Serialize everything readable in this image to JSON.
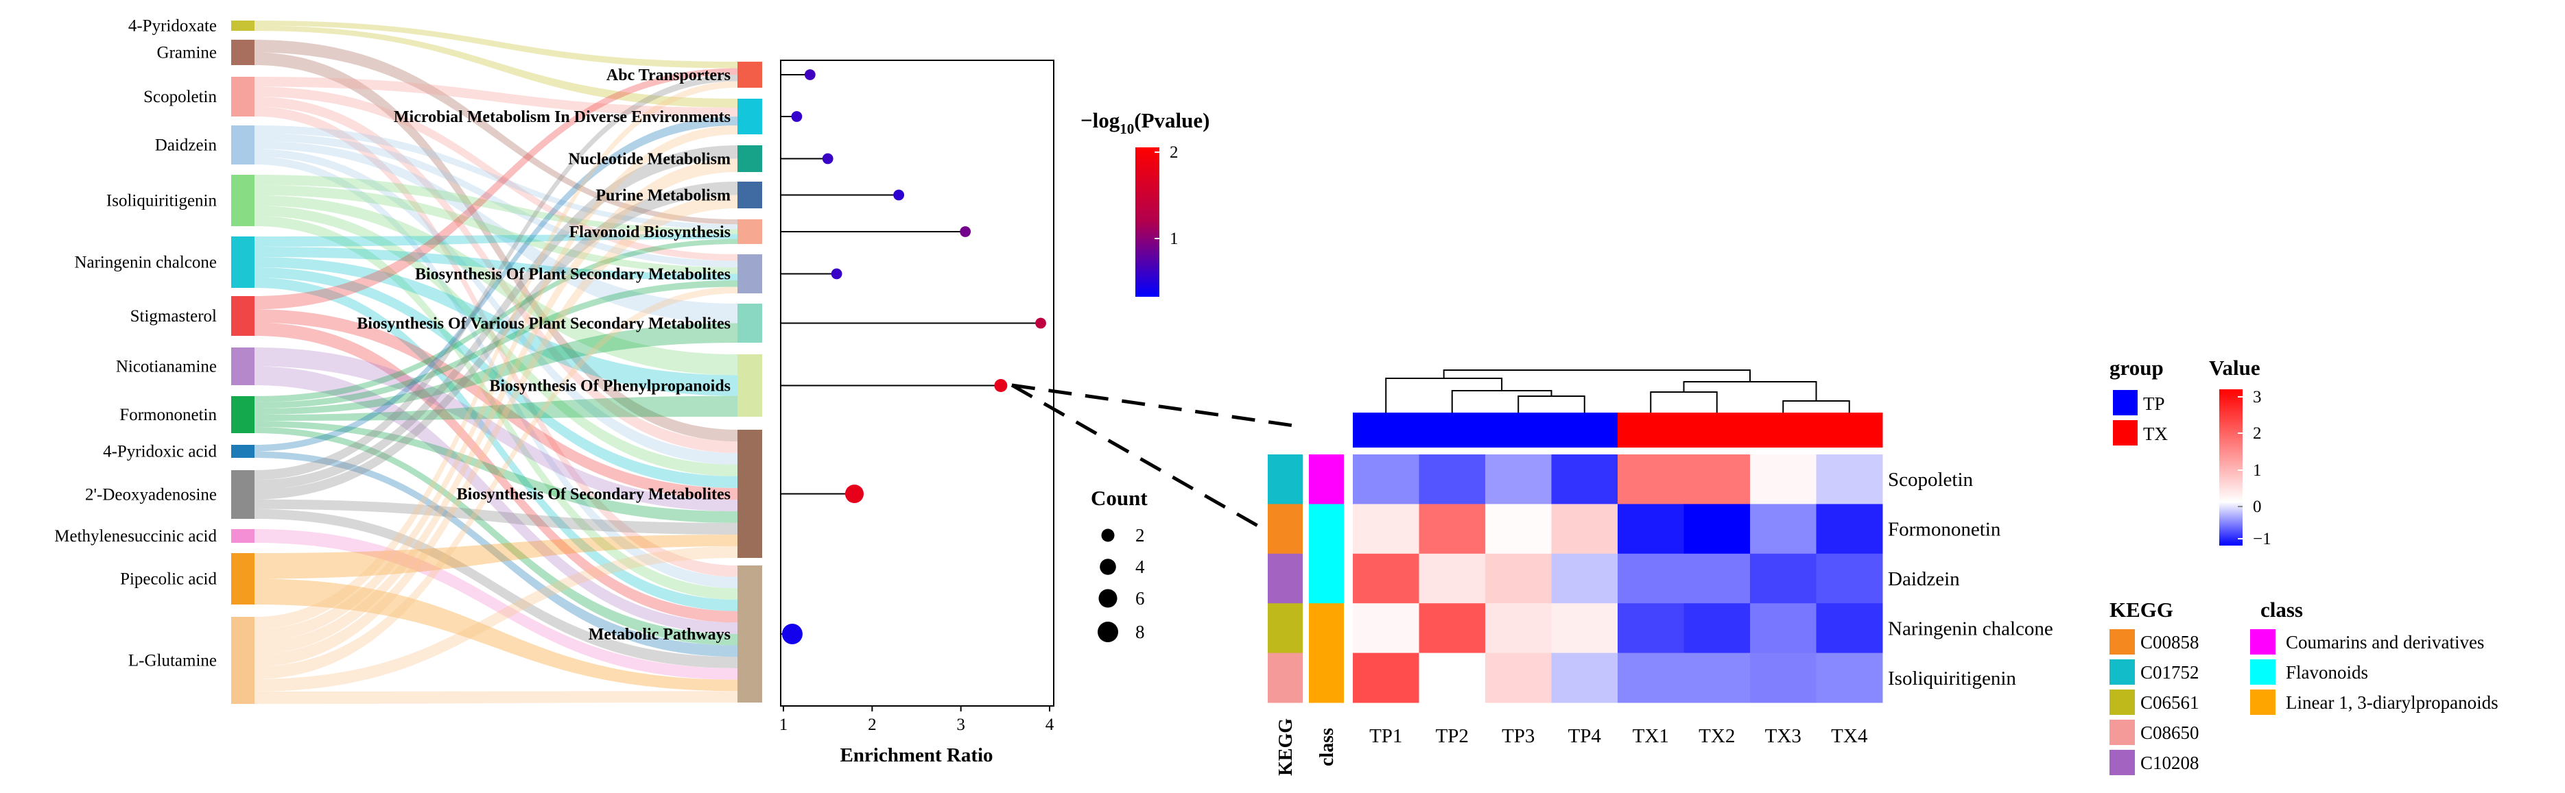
{
  "chart_data": [
    {
      "type": "sankey",
      "title": "",
      "sources": [
        "4-Pyridoxate",
        "Gramine",
        "Scopoletin",
        "Daidzein",
        "Isoliquiritigenin",
        "Naringenin chalcone",
        "Stigmasterol",
        "Nicotianamine",
        "Formononetin",
        "4-Pyridoxic acid",
        "2'-Deoxyadenosine",
        "Methylenesuccinic acid",
        "Pipecolic acid",
        "L-Glutamine"
      ],
      "targets": [
        "Abc Transporters",
        "Microbial Metabolism In Diverse Environments",
        "Nucleotide Metabolism",
        "Purine Metabolism",
        "Flavonoid Biosynthesis",
        "Biosynthesis Of Plant Secondary Metabolites",
        "Biosynthesis Of Various Plant Secondary Metabolites",
        "Biosynthesis Of Phenylpropanoids",
        "Biosynthesis Of Secondary Metabolites",
        "Metabolic Pathways"
      ],
      "source_colors": [
        "#c8c235",
        "#a86e5e",
        "#f6a39d",
        "#a9cbe8",
        "#88dc83",
        "#1cc6d2",
        "#f14646",
        "#b588cc",
        "#13a94c",
        "#1f7ab8",
        "#8c8c8c",
        "#f58fd5",
        "#f59b1e",
        "#f8c78f"
      ],
      "target_colors": [
        "#f35e48",
        "#13c6db",
        "#17a28a",
        "#3f6aa2",
        "#f6a890",
        "#9da6cc",
        "#8ad8c2",
        "#d6e7a6",
        "#9a6e59",
        "#c0a88d"
      ]
    },
    {
      "type": "lollipop",
      "categories": [
        "Abc Transporters",
        "Microbial Metabolism In Diverse Environments",
        "Nucleotide Metabolism",
        "Purine Metabolism",
        "Flavonoid Biosynthesis",
        "Biosynthesis Of Plant Secondary Metabolites",
        "Biosynthesis Of Various Plant Secondary Metabolites",
        "Biosynthesis Of Phenylpropanoids",
        "Biosynthesis Of Secondary Metabolites",
        "Metabolic Pathways"
      ],
      "enrichment_ratio": [
        1.3,
        1.15,
        1.5,
        2.3,
        3.05,
        1.6,
        3.9,
        3.45,
        1.8,
        1.1
      ],
      "neg_log10_pvalue": [
        0.5,
        0.4,
        0.45,
        0.35,
        0.9,
        0.45,
        1.5,
        1.8,
        1.8,
        0.15
      ],
      "count": [
        1,
        1,
        1,
        1,
        1,
        1,
        1,
        2,
        6,
        8
      ],
      "xlabel": "Enrichment Ratio",
      "xlim": [
        1,
        4
      ],
      "xticks": [
        "1",
        "2",
        "3",
        "4"
      ],
      "color_legend": {
        "title_prefix": "−log",
        "title_sub": "10",
        "title_suffix": "(Pvalue)",
        "ticks": [
          "2",
          "1"
        ]
      },
      "size_legend": {
        "title": "Count",
        "values": [
          "2",
          "4",
          "6",
          "8"
        ]
      }
    },
    {
      "type": "heatmap",
      "rows": [
        "Scopoletin",
        "Formononetin",
        "Daidzein",
        "Naringenin chalcone",
        "Isoliquiritigenin"
      ],
      "columns": [
        "TP1",
        "TP2",
        "TP3",
        "TP4",
        "TX1",
        "TX2",
        "TX3",
        "TX4"
      ],
      "values": [
        [
          -0.7,
          -1.0,
          -0.6,
          -1.2,
          1.6,
          1.6,
          0.1,
          -0.3
        ],
        [
          0.25,
          1.7,
          0.05,
          0.55,
          -1.35,
          -1.5,
          -0.7,
          -1.3
        ],
        [
          1.9,
          0.3,
          0.55,
          -0.35,
          -0.8,
          -0.8,
          -1.1,
          -1.0
        ],
        [
          0.1,
          2.0,
          0.3,
          0.2,
          -1.1,
          -1.2,
          -0.8,
          -1.2
        ],
        [
          2.1,
          0.0,
          0.5,
          -0.35,
          -0.7,
          -0.7,
          -0.75,
          -0.7
        ]
      ],
      "group_legend": {
        "title": "group",
        "items": [
          {
            "label": "TP",
            "color": "#0000ff"
          },
          {
            "label": "TX",
            "color": "#ff0000"
          }
        ]
      },
      "value_legend": {
        "title": "Value",
        "ticks": [
          "3",
          "2",
          "1",
          "0",
          "−1"
        ]
      },
      "kegg_legend": {
        "title": "KEGG",
        "items": [
          {
            "label": "C00858",
            "color": "#f5891f"
          },
          {
            "label": "C01752",
            "color": "#12bcc8"
          },
          {
            "label": "C06561",
            "color": "#bfb91b"
          },
          {
            "label": "C08650",
            "color": "#f49b9a"
          },
          {
            "label": "C10208",
            "color": "#a264c0"
          }
        ]
      },
      "class_legend": {
        "title": "class",
        "items": [
          {
            "label": "Coumarins and derivatives",
            "color": "#ff00ff"
          },
          {
            "label": "Flavonoids",
            "color": "#00ffff"
          },
          {
            "label": "Linear 1, 3-diarylpropanoids",
            "color": "#ffa500"
          }
        ]
      },
      "row_kegg": [
        "C01752",
        "C00858",
        "C10208",
        "C06561",
        "C08650"
      ],
      "row_class": [
        "Coumarins and derivatives",
        "Flavonoids",
        "Flavonoids",
        "Linear 1, 3-diarylpropanoids",
        "Linear 1, 3-diarylpropanoids"
      ],
      "annotation_labels": {
        "kegg": "KEGG",
        "class": "class"
      }
    }
  ]
}
